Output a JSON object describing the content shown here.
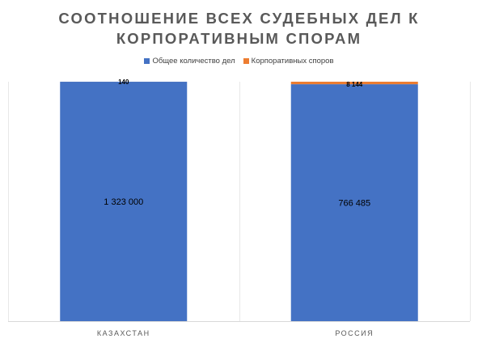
{
  "chart_data": {
    "type": "bar",
    "stacked": true,
    "normalized_percent": true,
    "title_lines": [
      "СООТНОШЕНИЕ ВСЕХ СУДЕБНЫХ ДЕЛ К",
      "КОРПОРАТИВНЫМ СПОРАМ"
    ],
    "categories": [
      "КАЗАХСТАН",
      "РОССИЯ"
    ],
    "series": [
      {
        "name": "Общее количество дел",
        "color": "#4472C4",
        "values": [
          1323000,
          766485
        ],
        "labels": [
          "1 323 000",
          "766 485"
        ]
      },
      {
        "name": "Корпоративных споров",
        "color": "#ED7D31",
        "values": [
          140,
          8144
        ],
        "labels": [
          "140",
          "8 144"
        ]
      }
    ],
    "legend_position": "top",
    "grid": false
  }
}
